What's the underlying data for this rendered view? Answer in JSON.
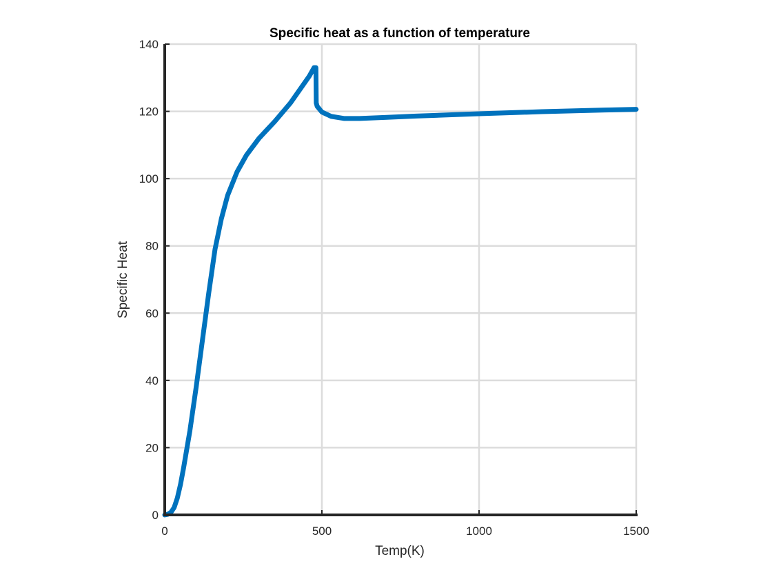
{
  "chart_data": {
    "type": "line",
    "title": "Specific heat as a function of temperature",
    "xlabel": "Temp(K)",
    "ylabel": "Specific Heat",
    "xlim": [
      0,
      1500
    ],
    "ylim": [
      0,
      140
    ],
    "xticks": [
      0,
      500,
      1000,
      1500
    ],
    "yticks": [
      0,
      20,
      40,
      60,
      80,
      100,
      120,
      140
    ],
    "grid": true,
    "series": [
      {
        "color": "#0072BD",
        "x": [
          0,
          10,
          20,
          30,
          40,
          50,
          60,
          80,
          100,
          120,
          140,
          160,
          180,
          200,
          230,
          260,
          300,
          350,
          400,
          430,
          460,
          475,
          481,
          482,
          485,
          500,
          530,
          570,
          620,
          700,
          800,
          1000,
          1200,
          1400,
          1500
        ],
        "y": [
          0,
          0.2,
          0.8,
          2.2,
          5,
          9,
          14,
          25,
          38,
          52,
          66,
          79,
          88,
          95,
          102,
          107,
          112,
          117,
          122.5,
          126.5,
          130.5,
          133,
          133,
          122.5,
          121.5,
          119.8,
          118.5,
          117.9,
          117.9,
          118.2,
          118.6,
          119.3,
          119.9,
          120.4,
          120.6
        ]
      }
    ]
  }
}
